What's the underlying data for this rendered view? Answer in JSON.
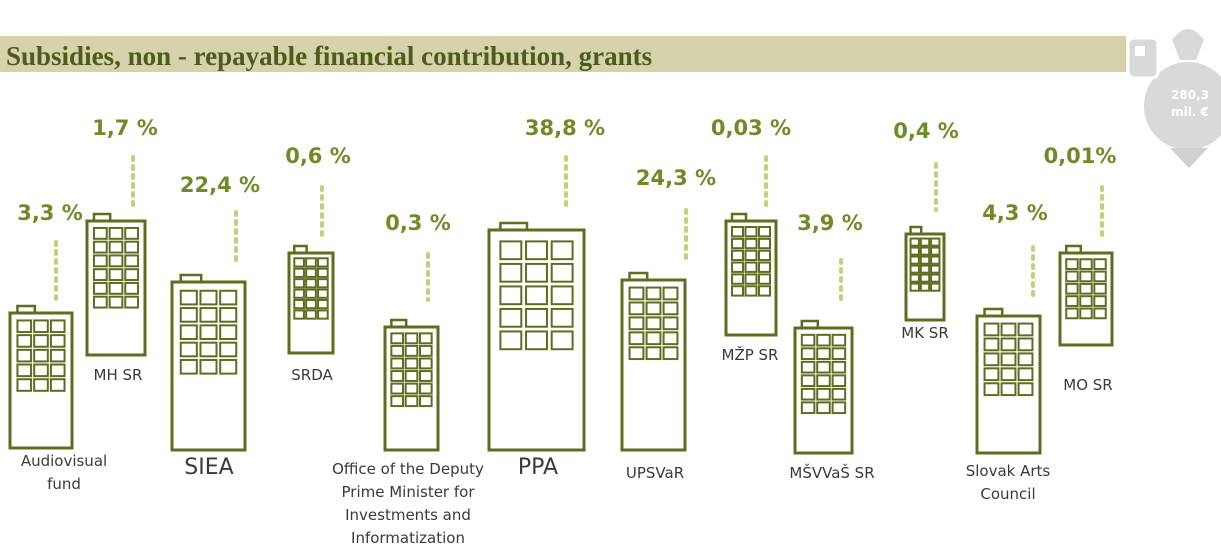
{
  "title": "Subsidies, non - repayable financial contribution, grants",
  "badge": {
    "amount": "280,3",
    "unit": "mil. €"
  },
  "items": [
    {
      "share": "3,3 %",
      "label": [
        "Audiovisual",
        "fund"
      ]
    },
    {
      "share": "1,7 %",
      "label": [
        "MH SR"
      ]
    },
    {
      "share": "22,4 %",
      "label": [
        "SIEA"
      ]
    },
    {
      "share": "0,6 %",
      "label": [
        "SRDA"
      ]
    },
    {
      "share": "0,3 %",
      "label": [
        "Office of the Deputy",
        "Prime Minister for",
        "Investments and",
        "Informatization"
      ]
    },
    {
      "share": "38,8 %",
      "label": [
        "PPA"
      ]
    },
    {
      "share": "24,3 %",
      "label": [
        "UPSVaR"
      ]
    },
    {
      "share": "0,03 %",
      "label": [
        "MŽP SR"
      ]
    },
    {
      "share": "3,9 %",
      "label": [
        "MŠVVaŠ SR"
      ]
    },
    {
      "share": "0,4 %",
      "label": [
        "MK SR"
      ]
    },
    {
      "share": "4,3 %",
      "label": [
        "Slovak Arts",
        "Council"
      ]
    },
    {
      "share": "0,01%",
      "label": [
        "MO SR"
      ]
    }
  ]
}
